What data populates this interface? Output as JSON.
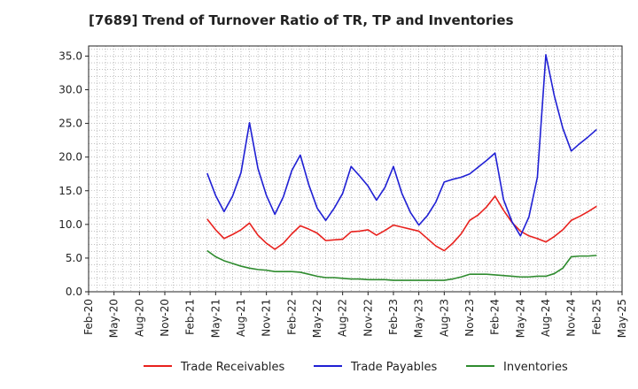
{
  "chart_data": {
    "type": "line",
    "title": "[7689]  Trend of Turnover Ratio of TR, TP and Inventories",
    "xlabel": "",
    "ylabel": "",
    "ylim": [
      0,
      36.5
    ],
    "yticks": [
      0,
      5,
      10,
      15,
      20,
      25,
      30,
      35
    ],
    "ytick_labels": [
      "0.0",
      "5.0",
      "10.0",
      "15.0",
      "20.0",
      "25.0",
      "30.0",
      "35.0"
    ],
    "xticks": [
      "2020-02",
      "2020-05",
      "2020-08",
      "2020-11",
      "2021-02",
      "2021-05",
      "2021-08",
      "2021-11",
      "2022-02",
      "2022-05",
      "2022-08",
      "2022-11",
      "2023-02",
      "2023-05",
      "2023-08",
      "2023-11",
      "2024-02",
      "2024-05",
      "2024-08",
      "2024-11",
      "2025-02",
      "2025-05"
    ],
    "xtick_labels": [
      "Feb-20",
      "May-20",
      "Aug-20",
      "Nov-20",
      "Feb-21",
      "May-21",
      "Aug-21",
      "Nov-21",
      "Feb-22",
      "May-22",
      "Aug-22",
      "Nov-22",
      "Feb-23",
      "May-23",
      "Aug-23",
      "Nov-23",
      "Feb-24",
      "May-24",
      "Aug-24",
      "Nov-24",
      "Feb-25",
      "May-25"
    ],
    "grid": true,
    "legend_position": "bottom",
    "x": [
      "2021-04",
      "2021-05",
      "2021-06",
      "2021-07",
      "2021-08",
      "2021-09",
      "2021-10",
      "2021-11",
      "2021-12",
      "2022-01",
      "2022-02",
      "2022-03",
      "2022-04",
      "2022-05",
      "2022-06",
      "2022-07",
      "2022-08",
      "2022-09",
      "2022-10",
      "2022-11",
      "2022-12",
      "2023-01",
      "2023-02",
      "2023-03",
      "2023-04",
      "2023-05",
      "2023-06",
      "2023-07",
      "2023-08",
      "2023-09",
      "2023-10",
      "2023-11",
      "2023-12",
      "2024-01",
      "2024-02",
      "2024-03",
      "2024-04",
      "2024-05",
      "2024-06",
      "2024-07",
      "2024-08",
      "2024-09",
      "2024-10",
      "2024-11",
      "2024-12",
      "2025-01",
      "2025-02"
    ],
    "series": [
      {
        "name": "Trade Receivables",
        "color": "#e8211d",
        "values": [
          10.8,
          9.2,
          7.9,
          8.5,
          9.2,
          10.2,
          8.4,
          7.2,
          6.3,
          7.2,
          8.6,
          9.8,
          9.3,
          8.7,
          7.6,
          7.7,
          7.8,
          8.9,
          9.0,
          9.2,
          8.4,
          9.1,
          9.9,
          9.6,
          9.3,
          9.0,
          7.9,
          6.8,
          6.1,
          7.2,
          8.6,
          10.6,
          11.4,
          12.6,
          14.2,
          12.1,
          10.3,
          9.0,
          8.3,
          7.9,
          7.4,
          8.2,
          9.2,
          10.6,
          11.2,
          11.9,
          12.7
        ]
      },
      {
        "name": "Trade Payables",
        "color": "#1f1fd4",
        "values": [
          17.6,
          14.3,
          11.9,
          14.2,
          17.7,
          25.1,
          18.3,
          14.3,
          11.5,
          14.1,
          18.0,
          20.3,
          15.9,
          12.4,
          10.6,
          12.4,
          14.6,
          18.6,
          17.2,
          15.7,
          13.6,
          15.5,
          18.6,
          14.6,
          11.8,
          9.9,
          11.3,
          13.3,
          16.3,
          16.7,
          17.0,
          17.5,
          18.5,
          19.5,
          20.6,
          13.7,
          10.4,
          8.3,
          11.1,
          17.0,
          35.2,
          29.1,
          24.3,
          20.9,
          22.0,
          23.0,
          24.1
        ]
      },
      {
        "name": "Inventories",
        "color": "#2e8b2e",
        "values": [
          6.1,
          5.2,
          4.6,
          4.2,
          3.8,
          3.5,
          3.3,
          3.2,
          3.0,
          3.0,
          3.0,
          2.9,
          2.6,
          2.3,
          2.1,
          2.1,
          2.0,
          1.9,
          1.9,
          1.8,
          1.8,
          1.8,
          1.7,
          1.7,
          1.7,
          1.7,
          1.7,
          1.7,
          1.7,
          1.9,
          2.2,
          2.6,
          2.6,
          2.6,
          2.5,
          2.4,
          2.3,
          2.2,
          2.2,
          2.3,
          2.3,
          2.7,
          3.5,
          5.2,
          5.3,
          5.3,
          5.4
        ]
      }
    ]
  }
}
